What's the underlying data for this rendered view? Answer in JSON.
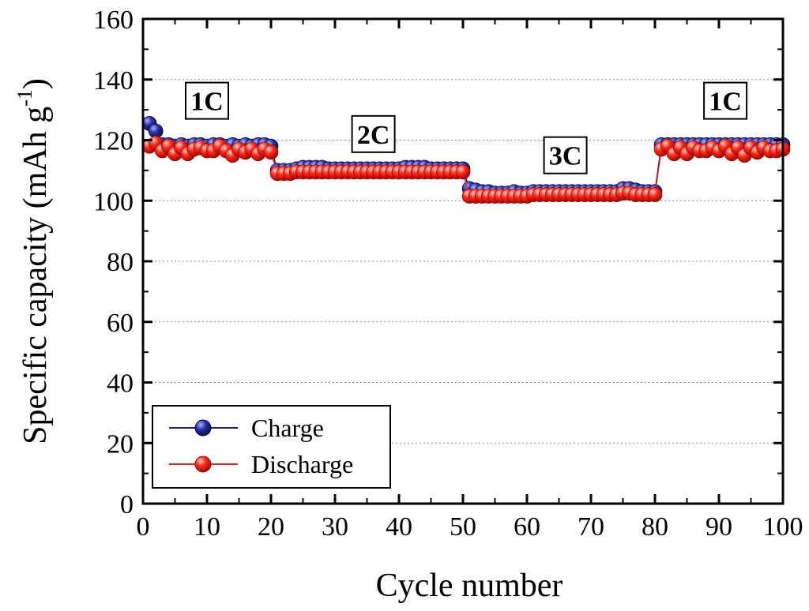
{
  "chart_data": {
    "type": "scatter",
    "title": "",
    "xlabel": "Cycle number",
    "ylabel": "Specific capacity (mAh g",
    "ylabel_superscript": "-1",
    "ylabel_close": ")",
    "xlim": [
      0,
      100
    ],
    "ylim": [
      0,
      160
    ],
    "xticks": [
      0,
      10,
      20,
      30,
      40,
      50,
      60,
      70,
      80,
      90,
      100
    ],
    "yticks": [
      0,
      20,
      40,
      60,
      80,
      100,
      120,
      140,
      160
    ],
    "grid": true,
    "legend_position": "bottom-left",
    "annotations": [
      {
        "text": "1C",
        "x": 10,
        "y": 133
      },
      {
        "text": "2C",
        "x": 36,
        "y": 122
      },
      {
        "text": "3C",
        "x": 66,
        "y": 115
      },
      {
        "text": "1C",
        "x": 91,
        "y": 133
      }
    ],
    "x": [
      1,
      2,
      3,
      4,
      5,
      6,
      7,
      8,
      9,
      10,
      11,
      12,
      13,
      14,
      15,
      16,
      17,
      18,
      19,
      20,
      21,
      22,
      23,
      24,
      25,
      26,
      27,
      28,
      29,
      30,
      31,
      32,
      33,
      34,
      35,
      36,
      37,
      38,
      39,
      40,
      41,
      42,
      43,
      44,
      45,
      46,
      47,
      48,
      49,
      50,
      51,
      52,
      53,
      54,
      55,
      56,
      57,
      58,
      59,
      60,
      61,
      62,
      63,
      64,
      65,
      66,
      67,
      68,
      69,
      70,
      71,
      72,
      73,
      74,
      75,
      76,
      77,
      78,
      79,
      80,
      81,
      82,
      83,
      84,
      85,
      86,
      87,
      88,
      89,
      90,
      91,
      92,
      93,
      94,
      95,
      96,
      97,
      98,
      99,
      100
    ],
    "series": [
      {
        "name": "Charge",
        "color": "#1a1f8c",
        "values": [
          125.5,
          123,
          118.5,
          118.5,
          118,
          118.5,
          118,
          118.5,
          118.5,
          118,
          118.5,
          118.5,
          118,
          118.5,
          118,
          118.5,
          118,
          118.5,
          118.5,
          118,
          110,
          110,
          110,
          110.5,
          111,
          111,
          111,
          111,
          110.5,
          110.5,
          110.5,
          110.5,
          110.5,
          110.5,
          110.5,
          110.5,
          110.5,
          110.5,
          110.5,
          110.5,
          111,
          111,
          111,
          111,
          110.5,
          110.5,
          110.5,
          110.5,
          110.5,
          110.5,
          104,
          103.5,
          103,
          103,
          102.5,
          102.5,
          102.5,
          103,
          102.5,
          102.5,
          103,
          103,
          103,
          103,
          103,
          103,
          103,
          103,
          103,
          103,
          103,
          103,
          103,
          103,
          104,
          104,
          103.5,
          103,
          103,
          103,
          118.5,
          118.5,
          118.5,
          118.5,
          118.5,
          118.5,
          118.5,
          118.5,
          118.5,
          118.5,
          118.5,
          118.5,
          118.5,
          118.5,
          118.5,
          118.5,
          118.5,
          118.5,
          118.5,
          118.5
        ]
      },
      {
        "name": "Discharge",
        "color": "#e8221a",
        "values": [
          118,
          119,
          116.5,
          118,
          115.5,
          117.5,
          115.5,
          117,
          117.5,
          116.5,
          116.5,
          118,
          116.5,
          115,
          117,
          116,
          117,
          115.5,
          117,
          116,
          109,
          109,
          109,
          109.5,
          109.5,
          109.5,
          109.5,
          109.5,
          109.5,
          109.5,
          109.5,
          109.5,
          109.5,
          109.5,
          109.5,
          109.5,
          109.5,
          109.5,
          109.5,
          109.5,
          109.5,
          109.5,
          109.5,
          109.5,
          109.5,
          109.5,
          109.5,
          109.5,
          109.5,
          109.5,
          101.5,
          101.5,
          101.5,
          101.5,
          101.5,
          101.5,
          101.5,
          101.5,
          101.5,
          101.5,
          102,
          102,
          102,
          102,
          102,
          102,
          102,
          102,
          102,
          102,
          102,
          102,
          102,
          102,
          102.5,
          102.5,
          102,
          102,
          102,
          102,
          117,
          118,
          115.5,
          117.5,
          115.5,
          117.5,
          116.5,
          116.5,
          117.5,
          116.5,
          118,
          115.5,
          117.5,
          115,
          117.5,
          116,
          117.5,
          116.5,
          116.5,
          117
        ]
      }
    ]
  }
}
